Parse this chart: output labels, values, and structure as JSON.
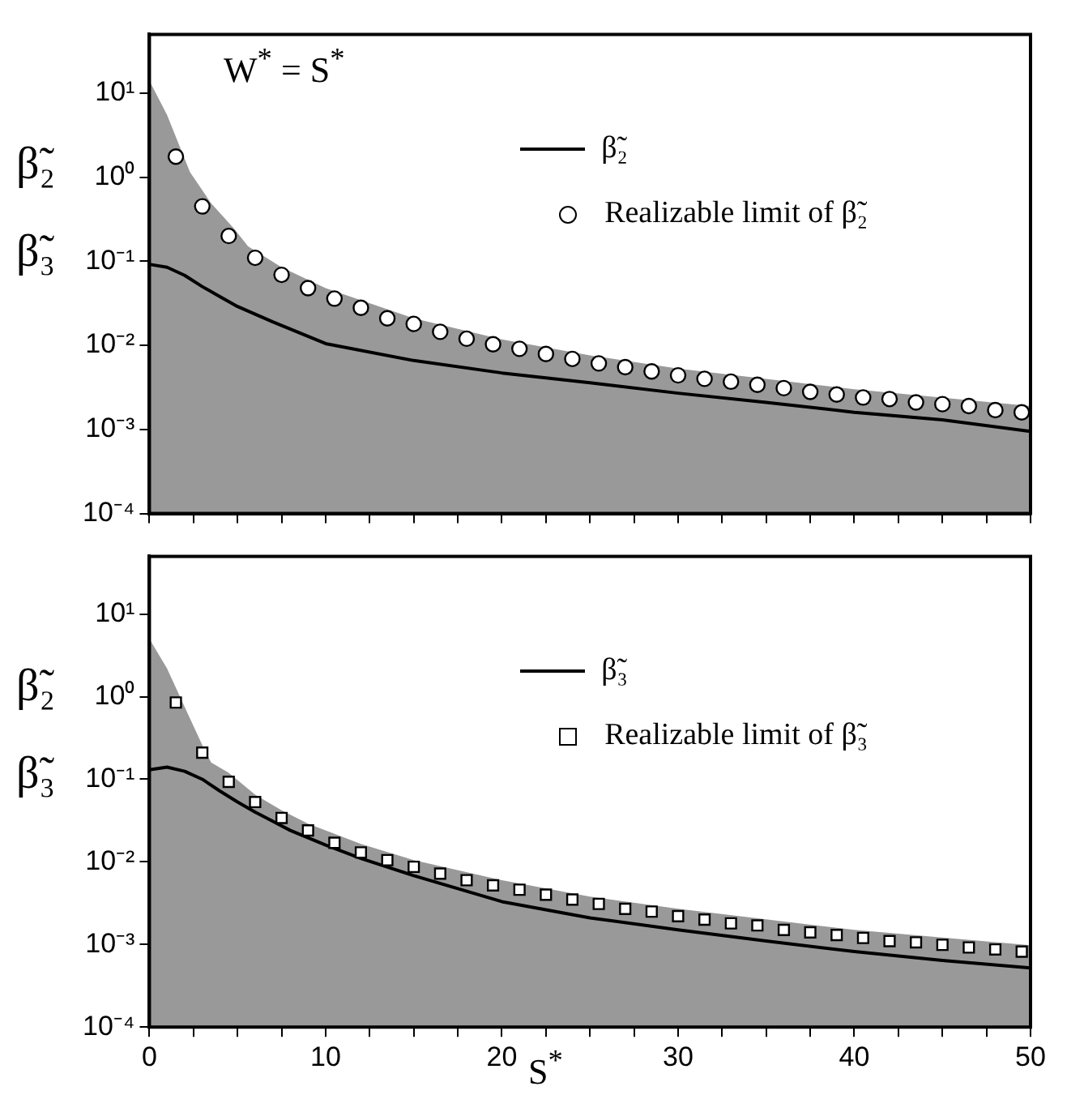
{
  "chart_data": [
    {
      "type": "line",
      "xlim": [
        0,
        50
      ],
      "ylim": [
        0.0001,
        50
      ],
      "log": "y",
      "grid": false,
      "legend": "top right",
      "tick_labels": "y",
      "ylabel": "β̃₂\nβ̃₃",
      "annotations": [
        "W$^{*}$ = S$^{*}$"
      ],
      "xticks": [
        0,
        {
          "value": 2.5,
          "label": null
        },
        {
          "value": 5,
          "label": null
        },
        {
          "value": 7.5,
          "label": null
        },
        10,
        {
          "value": 12.5,
          "label": null
        },
        {
          "value": 15,
          "label": null
        },
        {
          "value": 17.5,
          "label": null
        },
        20,
        {
          "value": 22.5,
          "label": null
        },
        {
          "value": 25,
          "label": null
        },
        {
          "value": 27.5,
          "label": null
        },
        30,
        {
          "value": 32.5,
          "label": null
        },
        {
          "value": 35,
          "label": null
        },
        {
          "value": 37.5,
          "label": null
        },
        40,
        {
          "value": 42.5,
          "label": null
        },
        {
          "value": 45,
          "label": null
        },
        {
          "value": 47.5,
          "label": null
        },
        50
      ],
      "yticks": [
        {
          "value": 0.0001,
          "label": "10⁻⁴"
        },
        {
          "value": 0.001,
          "label": "10⁻³"
        },
        {
          "value": 0.01,
          "label": "10⁻²"
        },
        {
          "value": 0.1,
          "label": "10⁻¹"
        },
        {
          "value": 1,
          "label": "10⁰"
        },
        {
          "value": 10,
          "label": "10¹"
        }
      ],
      "series": [
        {
          "type": "area",
          "color": "#999999",
          "x": [
            0,
            1,
            2.3,
            3.5,
            4.8,
            5.6,
            7.5,
            10,
            15,
            20,
            25,
            30,
            40,
            50
          ],
          "values": [
            14,
            5.5,
            1.15,
            0.49,
            0.245,
            0.15,
            0.085,
            0.048,
            0.021,
            0.0118,
            0.0076,
            0.0053,
            0.003,
            0.0019
          ]
        },
        {
          "type": "line",
          "name": "β̃₂",
          "color": "#000000",
          "x": [
            0,
            1,
            2,
            3,
            4,
            5,
            7,
            10,
            15,
            20,
            25,
            30,
            35,
            40,
            45,
            50
          ],
          "values": [
            0.092,
            0.085,
            0.068,
            0.05,
            0.038,
            0.029,
            0.019,
            0.0105,
            0.0066,
            0.0047,
            0.0036,
            0.0027,
            0.0021,
            0.0016,
            0.0013,
            0.00095
          ]
        },
        {
          "type": "scatter",
          "name": "Realizable limit of β̃₂",
          "marker": "circle",
          "color": "#000000",
          "x": [
            1.5,
            3,
            4.5,
            6,
            7.5,
            9,
            10.5,
            12,
            13.5,
            15,
            16.5,
            18,
            19.5,
            21,
            22.5,
            24,
            25.5,
            27,
            28.5,
            30,
            31.5,
            33,
            34.5,
            36,
            37.5,
            39,
            40.5,
            42,
            43.5,
            45,
            46.5,
            48,
            49.5
          ],
          "values": [
            1.76,
            0.45,
            0.2,
            0.11,
            0.069,
            0.048,
            0.036,
            0.028,
            0.021,
            0.018,
            0.0145,
            0.012,
            0.0103,
            0.0091,
            0.0079,
            0.0069,
            0.0061,
            0.0055,
            0.0049,
            0.0044,
            0.004,
            0.0037,
            0.0034,
            0.0031,
            0.0028,
            0.0026,
            0.0024,
            0.0023,
            0.0021,
            0.002,
            0.0019,
            0.0017,
            0.0016
          ]
        }
      ]
    },
    {
      "type": "line",
      "xlim": [
        0,
        50
      ],
      "ylim": [
        0.0001,
        50
      ],
      "log": "y",
      "grid": false,
      "legend": "top right",
      "ylabel": "β̃₂\nβ̃₃",
      "xlabel": "S$^{*}$",
      "xticks": [
        0,
        {
          "value": 2.5,
          "label": null
        },
        {
          "value": 5,
          "label": null
        },
        {
          "value": 7.5,
          "label": null
        },
        10,
        {
          "value": 12.5,
          "label": null
        },
        {
          "value": 15,
          "label": null
        },
        {
          "value": 17.5,
          "label": null
        },
        20,
        {
          "value": 22.5,
          "label": null
        },
        {
          "value": 25,
          "label": null
        },
        {
          "value": 27.5,
          "label": null
        },
        30,
        {
          "value": 32.5,
          "label": null
        },
        {
          "value": 35,
          "label": null
        },
        {
          "value": 37.5,
          "label": null
        },
        40,
        {
          "value": 42.5,
          "label": null
        },
        {
          "value": 45,
          "label": null
        },
        {
          "value": 47.5,
          "label": null
        },
        50
      ],
      "yticks": [
        {
          "value": 0.0001,
          "label": "10⁻⁴"
        },
        {
          "value": 0.001,
          "label": "10⁻³"
        },
        {
          "value": 0.01,
          "label": "10⁻²"
        },
        {
          "value": 0.1,
          "label": "10⁻¹"
        },
        {
          "value": 1,
          "label": "10⁰"
        },
        {
          "value": 10,
          "label": "10¹"
        }
      ],
      "series": [
        {
          "type": "area",
          "color": "#999999",
          "x": [
            0,
            1,
            2,
            3,
            3.5,
            4.5,
            6,
            7.5,
            9,
            12,
            15,
            20,
            25,
            30,
            40,
            50
          ],
          "values": [
            5,
            2.2,
            0.75,
            0.26,
            0.16,
            0.12,
            0.065,
            0.042,
            0.029,
            0.0165,
            0.0105,
            0.006,
            0.0038,
            0.0027,
            0.0015,
            0.00098
          ]
        },
        {
          "type": "line",
          "name": "β̃₃",
          "color": "#000000",
          "x": [
            0,
            1,
            2,
            3,
            4,
            5,
            6,
            7,
            8,
            10,
            12,
            15,
            20,
            25,
            30,
            35,
            40,
            45,
            50
          ],
          "values": [
            0.13,
            0.14,
            0.125,
            0.1,
            0.072,
            0.053,
            0.04,
            0.031,
            0.024,
            0.016,
            0.011,
            0.0068,
            0.0033,
            0.0021,
            0.0015,
            0.0011,
            0.00082,
            0.00064,
            0.00052
          ]
        },
        {
          "type": "scatter",
          "name": "Realizable limit of β̃₃",
          "marker": "square",
          "color": "#000000",
          "x": [
            1.5,
            3,
            4.5,
            6,
            7.5,
            9,
            10.5,
            12,
            13.5,
            15,
            16.5,
            18,
            19.5,
            21,
            22.5,
            24,
            25.5,
            27,
            28.5,
            30,
            31.5,
            33,
            34.5,
            36,
            37.5,
            39,
            40.5,
            42,
            43.5,
            45,
            46.5,
            48,
            49.5
          ],
          "values": [
            0.85,
            0.21,
            0.093,
            0.053,
            0.034,
            0.024,
            0.017,
            0.013,
            0.0105,
            0.0087,
            0.0072,
            0.006,
            0.0052,
            0.0046,
            0.004,
            0.0035,
            0.0031,
            0.0027,
            0.0025,
            0.0022,
            0.002,
            0.0018,
            0.0017,
            0.0015,
            0.0014,
            0.0013,
            0.0012,
            0.0011,
            0.00106,
            0.00099,
            0.00092,
            0.00087,
            0.00082
          ]
        }
      ]
    }
  ]
}
